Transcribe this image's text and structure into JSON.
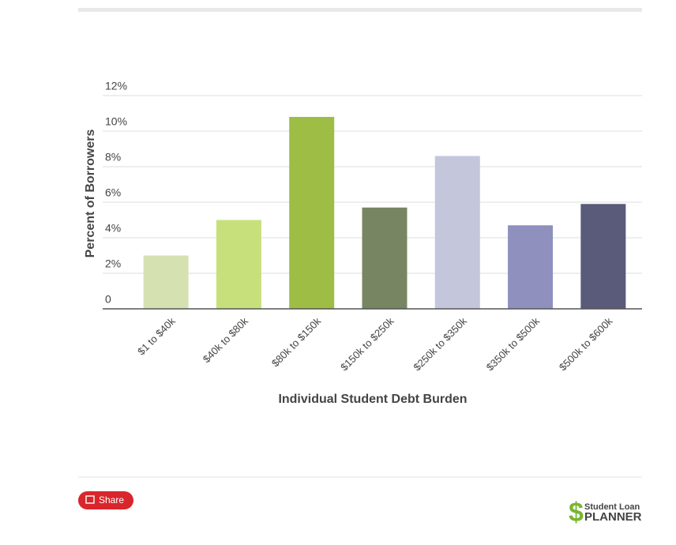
{
  "chart_data": {
    "type": "bar",
    "x_label": "Individual Student Debt Burden",
    "y_label": "Percent of Borrowers",
    "categories": [
      "$1 to $40k",
      "$40k to $80k",
      "$80k to $150k",
      "$150k to $250k",
      "$250k to $350k",
      "$350k to $500k",
      "$500k to $600k"
    ],
    "values": [
      3.0,
      5.0,
      10.8,
      5.7,
      8.6,
      4.7,
      5.9
    ],
    "colors": [
      "#d5e1b1",
      "#c8e07b",
      "#9ebd45",
      "#788563",
      "#c4c6dc",
      "#8f90bd",
      "#5a5b7b"
    ],
    "ylim": [
      0,
      12
    ],
    "yticks": [
      0,
      {
        "value": 2,
        "label": "2%"
      },
      {
        "value": 4,
        "label": "4%"
      },
      {
        "value": 6,
        "label": "6%"
      },
      {
        "value": 8,
        "label": "8%"
      },
      {
        "value": 10,
        "label": "10%"
      },
      {
        "value": 12,
        "label": "12%"
      }
    ],
    "grid": true
  },
  "share_button": "Share",
  "logo": {
    "symbol": "$",
    "line1": "Student Loan",
    "line2": "PLANNER"
  }
}
